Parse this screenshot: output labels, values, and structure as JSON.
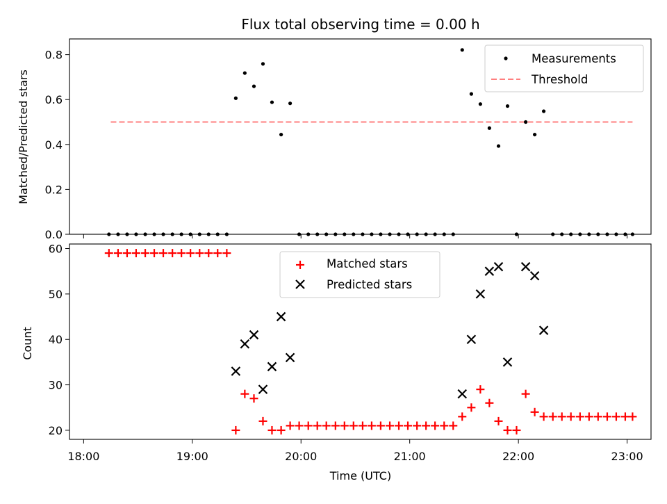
{
  "chart_data": [
    {
      "type": "scatter",
      "title": "Flux total observing time = 0.00 h",
      "xlabel": "",
      "ylabel": "Matched/Predicted stars",
      "xlim": [
        17.87,
        23.22
      ],
      "ylim": [
        0,
        0.87
      ],
      "yticks": [
        "0.0",
        "0.2",
        "0.4",
        "0.6",
        "0.8"
      ],
      "ytick_values": [
        0,
        0.2,
        0.4,
        0.6,
        0.8
      ],
      "legend": {
        "placement": "top-right",
        "entries": [
          "Measurements",
          "Threshold"
        ]
      },
      "colors": {
        "measurements": "#000000",
        "threshold": "#ff7f7f"
      },
      "threshold": {
        "y": 0.5,
        "x": [
          18.25,
          23.05
        ]
      },
      "series": [
        {
          "name": "Measurements",
          "x": [
            18.233,
            18.317,
            18.4,
            18.483,
            18.567,
            18.65,
            18.733,
            18.817,
            18.9,
            18.983,
            19.067,
            19.15,
            19.233,
            19.317,
            19.4,
            19.483,
            19.567,
            19.65,
            19.733,
            19.817,
            19.9,
            19.983,
            20.067,
            20.15,
            20.233,
            20.317,
            20.4,
            20.483,
            20.567,
            20.65,
            20.733,
            20.817,
            20.9,
            20.983,
            21.067,
            21.15,
            21.233,
            21.317,
            21.4,
            21.483,
            21.567,
            21.65,
            21.733,
            21.817,
            21.9,
            21.983,
            22.067,
            22.15,
            22.233,
            22.317,
            22.4,
            22.483,
            22.567,
            22.65,
            22.733,
            22.817,
            22.9,
            22.983,
            23.05
          ],
          "y": [
            0,
            0,
            0,
            0,
            0,
            0,
            0,
            0,
            0,
            0,
            0,
            0,
            0,
            0,
            0.606,
            0.718,
            0.659,
            0.759,
            0.588,
            0.444,
            0.583,
            0,
            0,
            0,
            0,
            0,
            0,
            0,
            0,
            0,
            0,
            0,
            0,
            0,
            0,
            0,
            0,
            0,
            0,
            0.821,
            0.625,
            0.58,
            0.473,
            0.393,
            0.571,
            0,
            0.5,
            0.444,
            0.548,
            0,
            0,
            0,
            0,
            0,
            0,
            0,
            0,
            0,
            0
          ]
        }
      ]
    },
    {
      "type": "scatter",
      "title": "",
      "xlabel": "Time (UTC)",
      "ylabel": "Count",
      "xlim": [
        17.87,
        23.22
      ],
      "ylim": [
        18,
        61
      ],
      "yticks": [
        "20",
        "30",
        "40",
        "50",
        "60"
      ],
      "ytick_values": [
        20,
        30,
        40,
        50,
        60
      ],
      "xticks": [
        "18:00",
        "19:00",
        "20:00",
        "21:00",
        "22:00",
        "23:00"
      ],
      "xtick_values": [
        18,
        19,
        20,
        21,
        22,
        23
      ],
      "legend": {
        "placement": "top-center",
        "entries": [
          "Matched stars",
          "Predicted stars"
        ]
      },
      "colors": {
        "matched": "#ff0000",
        "predicted": "#000000"
      },
      "series": [
        {
          "name": "Matched stars",
          "marker": "+",
          "x": [
            18.233,
            18.317,
            18.4,
            18.483,
            18.567,
            18.65,
            18.733,
            18.817,
            18.9,
            18.983,
            19.067,
            19.15,
            19.233,
            19.317,
            19.4,
            19.483,
            19.567,
            19.65,
            19.733,
            19.817,
            19.9,
            19.983,
            20.067,
            20.15,
            20.233,
            20.317,
            20.4,
            20.483,
            20.567,
            20.65,
            20.733,
            20.817,
            20.9,
            20.983,
            21.067,
            21.15,
            21.233,
            21.317,
            21.4,
            21.483,
            21.567,
            21.65,
            21.733,
            21.817,
            21.9,
            21.983,
            22.067,
            22.15,
            22.233,
            22.317,
            22.4,
            22.483,
            22.567,
            22.65,
            22.733,
            22.817,
            22.9,
            22.983,
            23.05
          ],
          "y": [
            59,
            59,
            59,
            59,
            59,
            59,
            59,
            59,
            59,
            59,
            59,
            59,
            59,
            59,
            20,
            28,
            27,
            22,
            20,
            20,
            21,
            21,
            21,
            21,
            21,
            21,
            21,
            21,
            21,
            21,
            21,
            21,
            21,
            21,
            21,
            21,
            21,
            21,
            21,
            23,
            25,
            29,
            26,
            22,
            20,
            20,
            28,
            24,
            23,
            23,
            23,
            23,
            23,
            23,
            23,
            23,
            23,
            23,
            23
          ]
        },
        {
          "name": "Predicted stars",
          "marker": "x",
          "x": [
            19.4,
            19.483,
            19.567,
            19.65,
            19.733,
            19.817,
            19.9,
            21.483,
            21.567,
            21.65,
            21.733,
            21.817,
            21.9,
            22.067,
            22.15,
            22.233
          ],
          "y": [
            33,
            39,
            41,
            29,
            34,
            45,
            36,
            28,
            40,
            50,
            55,
            56,
            35,
            56,
            54,
            42
          ]
        }
      ]
    }
  ]
}
